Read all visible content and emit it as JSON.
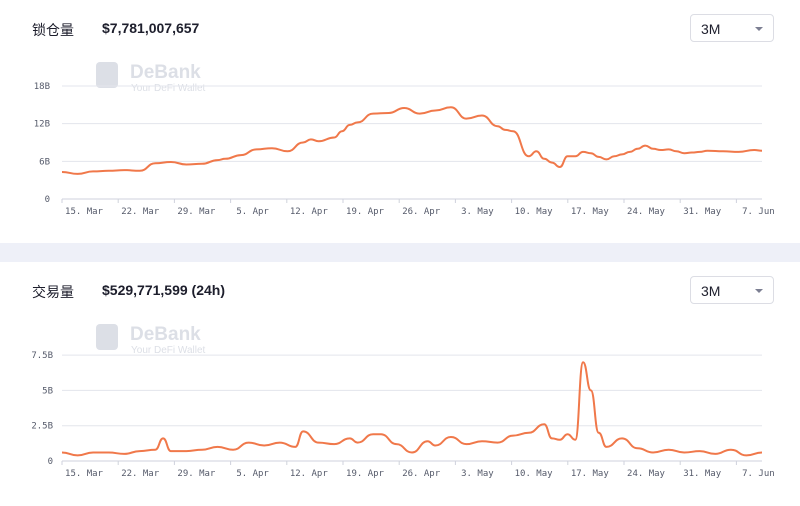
{
  "tvl": {
    "title": "锁仓量",
    "value": "$7,781,007,657",
    "range": "3M"
  },
  "volume": {
    "title": "交易量",
    "value": "$529,771,599 (24h)",
    "range": "3M"
  },
  "watermark": {
    "name": "DeBank",
    "tagline": "Your DeFi Wallet"
  },
  "colors": {
    "line": "#f0784a",
    "grid": "#e3e5ec",
    "divider": "#eef0f8"
  },
  "chart_data": [
    {
      "type": "line",
      "title": "锁仓量",
      "x_ticks": [
        "15. Mar",
        "22. Mar",
        "29. Mar",
        "5. Apr",
        "12. Apr",
        "19. Apr",
        "26. Apr",
        "3. May",
        "10. May",
        "17. May",
        "24. May",
        "31. May",
        "7. Jun"
      ],
      "y_ticks": [
        "0",
        "6B",
        "12B",
        "18B"
      ],
      "ylim": [
        0,
        18
      ],
      "y_unit": "B",
      "grid": true,
      "x": [
        0,
        2,
        4,
        6,
        8,
        10,
        12,
        14,
        16,
        18,
        20,
        21,
        23,
        25,
        27,
        29,
        31,
        32,
        33,
        35,
        36,
        37,
        38,
        40,
        42,
        44,
        46,
        48,
        50,
        52,
        54,
        56,
        57,
        58,
        60,
        61,
        62,
        63,
        64,
        65,
        66,
        67,
        68,
        69,
        70,
        71,
        72,
        73,
        74,
        75,
        76,
        77,
        78,
        79,
        80,
        81,
        82,
        83,
        85,
        87,
        89,
        90
      ],
      "values": [
        4.3,
        4.0,
        4.4,
        4.5,
        4.6,
        4.5,
        5.7,
        5.9,
        5.5,
        5.6,
        6.2,
        6.4,
        7.0,
        7.9,
        8.1,
        7.6,
        9.0,
        9.5,
        9.2,
        9.8,
        10.8,
        11.8,
        12.2,
        13.6,
        13.7,
        14.5,
        13.6,
        14.1,
        14.6,
        12.8,
        13.3,
        11.6,
        11.0,
        10.8,
        6.8,
        7.6,
        6.4,
        5.8,
        5.1,
        6.8,
        6.8,
        7.5,
        7.3,
        6.7,
        6.3,
        6.8,
        7.1,
        7.5,
        8.0,
        8.5,
        8.0,
        7.8,
        7.9,
        7.6,
        7.3,
        7.4,
        7.5,
        7.7,
        7.6,
        7.5,
        7.8,
        7.7
      ],
      "x_domain": [
        0,
        90
      ]
    },
    {
      "type": "line",
      "title": "交易量",
      "x_ticks": [
        "15. Mar",
        "22. Mar",
        "29. Mar",
        "5. Apr",
        "12. Apr",
        "19. Apr",
        "26. Apr",
        "3. May",
        "10. May",
        "17. May",
        "24. May",
        "31. May",
        "7. Jun"
      ],
      "y_ticks": [
        "0",
        "2.5B",
        "5B",
        "7.5B"
      ],
      "ylim": [
        0,
        8.5
      ],
      "y_unit": "B",
      "grid": true,
      "x": [
        0,
        2,
        4,
        6,
        8,
        10,
        12,
        13,
        14,
        16,
        18,
        20,
        22,
        24,
        26,
        28,
        30,
        31,
        33,
        35,
        37,
        38,
        40,
        41,
        43,
        45,
        47,
        48,
        50,
        52,
        54,
        56,
        58,
        60,
        62,
        63,
        64,
        65,
        66,
        67,
        68,
        69,
        70,
        72,
        74,
        76,
        78,
        80,
        82,
        84,
        86,
        88,
        90
      ],
      "values": [
        0.6,
        0.4,
        0.6,
        0.6,
        0.5,
        0.7,
        0.8,
        1.6,
        0.7,
        0.7,
        0.8,
        1.0,
        0.8,
        1.3,
        1.1,
        1.3,
        1.0,
        2.1,
        1.3,
        1.2,
        1.6,
        1.3,
        1.9,
        1.9,
        1.2,
        0.6,
        1.4,
        1.1,
        1.7,
        1.2,
        1.4,
        1.3,
        1.8,
        2.0,
        2.6,
        1.6,
        1.5,
        1.9,
        1.5,
        7.0,
        5.0,
        2.0,
        1.0,
        1.6,
        0.9,
        0.6,
        0.8,
        0.6,
        0.7,
        0.5,
        0.8,
        0.4,
        0.6
      ],
      "x_domain": [
        0,
        90
      ]
    }
  ]
}
